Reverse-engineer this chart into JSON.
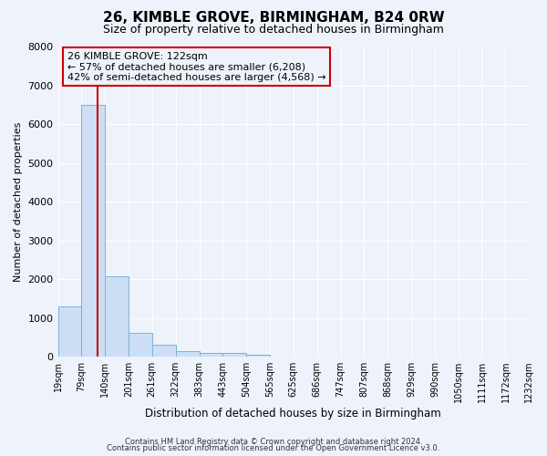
{
  "title": "26, KIMBLE GROVE, BIRMINGHAM, B24 0RW",
  "subtitle": "Size of property relative to detached houses in Birmingham",
  "xlabel": "Distribution of detached houses by size in Birmingham",
  "ylabel": "Number of detached properties",
  "bin_labels": [
    "19sqm",
    "79sqm",
    "140sqm",
    "201sqm",
    "261sqm",
    "322sqm",
    "383sqm",
    "443sqm",
    "504sqm",
    "565sqm",
    "625sqm",
    "686sqm",
    "747sqm",
    "807sqm",
    "868sqm",
    "929sqm",
    "990sqm",
    "1050sqm",
    "1111sqm",
    "1172sqm",
    "1232sqm"
  ],
  "bar_heights": [
    1300,
    6500,
    2070,
    620,
    300,
    140,
    90,
    100,
    50,
    0,
    0,
    0,
    0,
    0,
    0,
    0,
    0,
    0,
    0,
    0
  ],
  "bar_color": "#ccdff5",
  "bar_edge_color": "#7ab3d4",
  "ylim": [
    0,
    8000
  ],
  "yticks": [
    0,
    1000,
    2000,
    3000,
    4000,
    5000,
    6000,
    7000,
    8000
  ],
  "property_line_x": 122,
  "property_line_color": "#cc0000",
  "annotation_title": "26 KIMBLE GROVE: 122sqm",
  "annotation_line1": "← 57% of detached houses are smaller (6,208)",
  "annotation_line2": "42% of semi-detached houses are larger (4,568) →",
  "annotation_box_color": "#cc0000",
  "footer1": "Contains HM Land Registry data © Crown copyright and database right 2024.",
  "footer2": "Contains public sector information licensed under the Open Government Licence v3.0.",
  "bg_color": "#eef2fa",
  "grid_color": "#ffffff",
  "bin_edges": [
    19,
    79,
    140,
    201,
    261,
    322,
    383,
    443,
    504,
    565,
    625,
    686,
    747,
    807,
    868,
    929,
    990,
    1050,
    1111,
    1172,
    1232
  ]
}
